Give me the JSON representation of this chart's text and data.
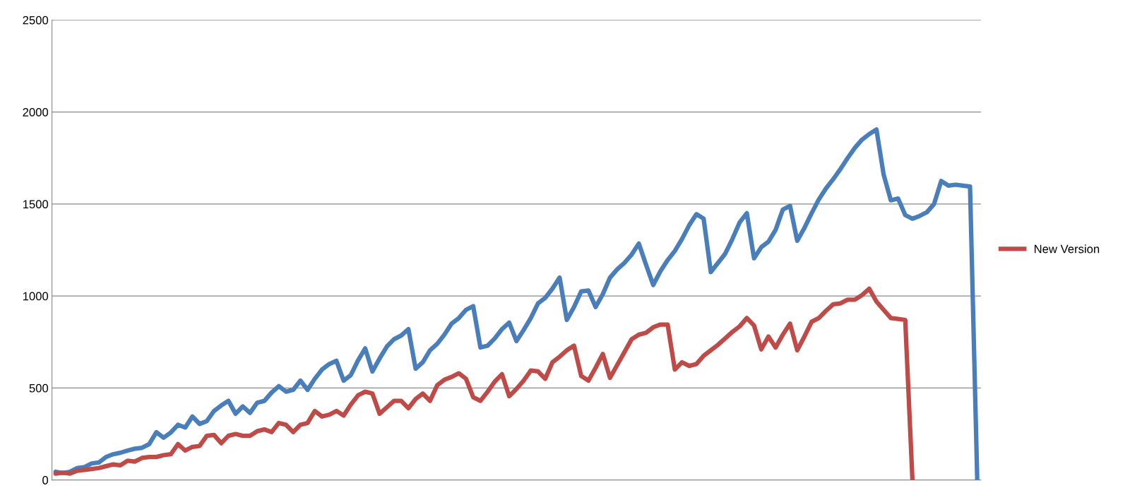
{
  "chart_data": {
    "type": "line",
    "categories": [
      null,
      null,
      null,
      null,
      null,
      null,
      null,
      null,
      null,
      null,
      null,
      null,
      null,
      null,
      null,
      null,
      null,
      null,
      null,
      null,
      null,
      null,
      null,
      null,
      null,
      null,
      null,
      null,
      null,
      null,
      null,
      null,
      null,
      null,
      null,
      null,
      null,
      null,
      null,
      null,
      null,
      null,
      null,
      null,
      null,
      null,
      null,
      null,
      null,
      null,
      null,
      null,
      null,
      null,
      null,
      null,
      null,
      null,
      null,
      null,
      null,
      null,
      null,
      null,
      null,
      null,
      null,
      null,
      null,
      null,
      null,
      null,
      null,
      null,
      null,
      null,
      null,
      null,
      null,
      null,
      null,
      null,
      null,
      null,
      null,
      null,
      null,
      null,
      null,
      null,
      null,
      null,
      null,
      null,
      null,
      null,
      null,
      null,
      null,
      null,
      null,
      null,
      null,
      null,
      null,
      null,
      null,
      null,
      null,
      null,
      null,
      null,
      null,
      null,
      null,
      null,
      null,
      null,
      null,
      null,
      null,
      null,
      null,
      null,
      null,
      null,
      null,
      null,
      null
    ],
    "ylim": [
      0,
      2500
    ],
    "yticks": [
      0,
      500,
      1000,
      1500,
      2000,
      2500
    ],
    "grid": "y",
    "legend": "right",
    "marker": "none",
    "line_style": "solid",
    "series": [
      {
        "color": "#4a7ebb",
        "values": [
          45,
          38,
          45,
          65,
          70,
          90,
          95,
          125,
          140,
          148,
          160,
          170,
          175,
          195,
          260,
          230,
          258,
          300,
          285,
          345,
          305,
          320,
          375,
          405,
          430,
          360,
          400,
          365,
          420,
          430,
          475,
          510,
          480,
          490,
          540,
          490,
          550,
          600,
          630,
          648,
          540,
          570,
          650,
          715,
          590,
          660,
          725,
          765,
          785,
          820,
          605,
          640,
          705,
          740,
          790,
          850,
          880,
          925,
          945,
          720,
          730,
          770,
          820,
          855,
          755,
          815,
          880,
          960,
          990,
          1040,
          1100,
          870,
          940,
          1025,
          1030,
          940,
          1010,
          1100,
          1145,
          1180,
          1225,
          1285,
          1170,
          1060,
          1135,
          1195,
          1245,
          1310,
          1385,
          1445,
          1420,
          1130,
          1180,
          1230,
          1310,
          1400,
          1450,
          1205,
          1265,
          1295,
          1360,
          1470,
          1490,
          1300,
          1370,
          1450,
          1525,
          1585,
          1635,
          1690,
          1750,
          1805,
          1850,
          1880,
          1905,
          1660,
          1520,
          1530,
          1440,
          1420,
          1435,
          1455,
          1500,
          1625,
          1600,
          1605,
          1600,
          1595,
          0
        ]
      },
      {
        "name": "New Version",
        "color": "#be4b48",
        "values": [
          35,
          40,
          35,
          50,
          55,
          60,
          65,
          75,
          85,
          80,
          105,
          100,
          120,
          125,
          125,
          135,
          140,
          195,
          160,
          180,
          185,
          240,
          245,
          200,
          240,
          250,
          240,
          240,
          265,
          275,
          260,
          310,
          300,
          260,
          300,
          310,
          375,
          345,
          355,
          375,
          350,
          410,
          460,
          480,
          470,
          360,
          395,
          430,
          430,
          390,
          440,
          470,
          430,
          515,
          545,
          560,
          580,
          550,
          450,
          430,
          480,
          535,
          575,
          455,
          495,
          540,
          595,
          590,
          550,
          640,
          670,
          705,
          730,
          565,
          540,
          610,
          685,
          555,
          625,
          695,
          765,
          790,
          800,
          830,
          845,
          845,
          600,
          640,
          620,
          630,
          675,
          705,
          735,
          770,
          805,
          835,
          880,
          840,
          710,
          780,
          720,
          790,
          850,
          705,
          780,
          860,
          880,
          920,
          955,
          960,
          980,
          980,
          1005,
          1040,
          970,
          925,
          880,
          875,
          870,
          0,
          null,
          null,
          null,
          null,
          null,
          null,
          null,
          null,
          null
        ]
      }
    ]
  }
}
